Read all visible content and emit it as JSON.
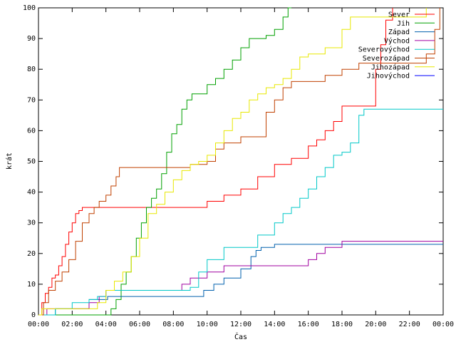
{
  "chart_data": {
    "type": "line",
    "title": "",
    "xlabel": "Čas",
    "ylabel": "krát",
    "xlim": [
      0,
      24
    ],
    "ylim": [
      0,
      100
    ],
    "x_unit": "hours",
    "x_ticks": [
      {
        "value": 0,
        "label": "00:00"
      },
      {
        "value": 2,
        "label": "02:00"
      },
      {
        "value": 4,
        "label": "04:00"
      },
      {
        "value": 6,
        "label": "06:00"
      },
      {
        "value": 8,
        "label": "08:00"
      },
      {
        "value": 10,
        "label": "10:00"
      },
      {
        "value": 12,
        "label": "12:00"
      },
      {
        "value": 14,
        "label": "14:00"
      },
      {
        "value": 16,
        "label": "16:00"
      },
      {
        "value": 18,
        "label": "18:00"
      },
      {
        "value": 20,
        "label": "20:00"
      },
      {
        "value": 22,
        "label": "22:00"
      },
      {
        "value": 24,
        "label": "00:00"
      }
    ],
    "y_ticks": [
      0,
      10,
      20,
      30,
      40,
      50,
      60,
      70,
      80,
      90,
      100
    ],
    "grid": false,
    "legend_position": "top-right",
    "series": [
      {
        "name": "Sever",
        "color": "#ff0000",
        "x": [
          0,
          0.2,
          0.4,
          0.6,
          0.8,
          1.0,
          1.2,
          1.4,
          1.6,
          1.8,
          2.0,
          2.2,
          2.4,
          2.6,
          2.8,
          3.0,
          9.5,
          10.0,
          11.0,
          12.0,
          13.0,
          14.0,
          15.0,
          16.0,
          16.5,
          17.0,
          17.5,
          18.0,
          18.5,
          19.0,
          20.0,
          20.3,
          20.6,
          21.0
        ],
        "y": [
          0,
          4,
          7,
          9,
          12,
          13,
          16,
          19,
          23,
          27,
          30,
          33,
          34,
          35,
          35,
          35,
          35,
          37,
          39,
          41,
          45,
          49,
          51,
          55,
          57,
          60,
          63,
          68,
          68,
          68,
          80,
          88,
          96,
          100
        ]
      },
      {
        "name": "Jih",
        "color": "#00a000",
        "x": [
          0,
          4.0,
          4.3,
          4.6,
          4.9,
          5.2,
          5.5,
          5.8,
          6.1,
          6.4,
          6.7,
          7.0,
          7.3,
          7.6,
          7.9,
          8.2,
          8.5,
          8.8,
          9.1,
          9.5,
          10.0,
          10.5,
          11.0,
          11.5,
          12.0,
          12.5,
          13.0,
          13.5,
          14.0,
          14.5,
          14.8,
          15.0
        ],
        "y": [
          0,
          0,
          2,
          5,
          10,
          14,
          19,
          25,
          30,
          35,
          38,
          41,
          46,
          53,
          59,
          62,
          67,
          70,
          72,
          72,
          75,
          77,
          80,
          83,
          87,
          90,
          90,
          91,
          93,
          97,
          100,
          100
        ]
      },
      {
        "name": "Západ",
        "color": "#0060ad",
        "x": [
          0,
          0.9,
          1.0,
          2.5,
          3.0,
          4.0,
          4.1,
          6.0,
          8.0,
          9.8,
          10.4,
          11.0,
          12.0,
          12.6,
          12.9,
          13.2,
          14.0,
          16.0,
          18.0,
          20.0,
          24.0
        ],
        "y": [
          0,
          0,
          2,
          2,
          5,
          5,
          6,
          6,
          6,
          8,
          10,
          12,
          15,
          19,
          21,
          22,
          23,
          23,
          23,
          23,
          23
        ]
      },
      {
        "name": "Východ",
        "color": "#a000a0",
        "x": [
          0,
          0.3,
          0.5,
          2.0,
          3.0,
          3.6,
          4.0,
          6.0,
          8.0,
          8.5,
          9.0,
          10.0,
          11.0,
          12.0,
          14.0,
          15.0,
          16.0,
          16.5,
          17.0,
          18.0,
          20.0,
          24.0
        ],
        "y": [
          0,
          0,
          2,
          2,
          4,
          6,
          8,
          8,
          8,
          10,
          12,
          14,
          16,
          16,
          16,
          16,
          18,
          20,
          22,
          24,
          24,
          24
        ]
      },
      {
        "name": "Severovýchod",
        "color": "#00c8c8",
        "x": [
          0,
          1.0,
          2.0,
          3.0,
          3.5,
          4.0,
          6.0,
          8.0,
          9.0,
          9.5,
          10.0,
          11.0,
          12.0,
          13.0,
          14.0,
          14.5,
          15.0,
          15.5,
          16.0,
          16.5,
          17.0,
          17.5,
          18.0,
          18.5,
          19.0,
          19.3,
          20.0,
          24.0
        ],
        "y": [
          0,
          2,
          4,
          5,
          6,
          8,
          8,
          8,
          9,
          14,
          18,
          22,
          22,
          26,
          30,
          33,
          35,
          38,
          41,
          45,
          48,
          52,
          53,
          56,
          65,
          67,
          67,
          67
        ]
      },
      {
        "name": "Severozápad",
        "color": "#c04000",
        "x": [
          0,
          0.3,
          0.6,
          1.0,
          1.4,
          1.8,
          2.2,
          2.6,
          3.0,
          3.3,
          3.6,
          4.0,
          4.3,
          4.6,
          4.8,
          5.0,
          6.0,
          8.0,
          9.0,
          10.0,
          10.5,
          11.0,
          12.0,
          13.0,
          13.5,
          14.0,
          14.5,
          15.0,
          16.0,
          17.0,
          18.0,
          19.0,
          20.0,
          21.0,
          22.0,
          23.0,
          23.5,
          23.8
        ],
        "y": [
          0,
          4,
          8,
          11,
          14,
          18,
          24,
          30,
          33,
          35,
          37,
          39,
          42,
          45,
          48,
          48,
          48,
          48,
          49,
          50,
          54,
          56,
          58,
          58,
          66,
          70,
          74,
          76,
          76,
          78,
          80,
          82,
          82,
          82,
          82,
          85,
          93,
          100
        ]
      },
      {
        "name": "Jihozápad",
        "color": "#e8e800",
        "x": [
          0,
          0.2,
          0.5,
          3.0,
          3.5,
          4.0,
          4.5,
          5.0,
          5.5,
          6.0,
          6.5,
          7.0,
          7.5,
          8.0,
          8.5,
          9.0,
          9.5,
          10.0,
          10.5,
          11.0,
          11.5,
          12.0,
          12.5,
          13.0,
          13.5,
          14.0,
          14.5,
          15.0,
          15.5,
          16.0,
          17.0,
          18.0,
          18.5,
          19.0,
          19.5,
          20.0,
          21.0,
          22.0,
          23.0
        ],
        "y": [
          0,
          2,
          2,
          2,
          4,
          8,
          11,
          14,
          19,
          25,
          33,
          36,
          40,
          44,
          47,
          49,
          50,
          52,
          56,
          60,
          64,
          66,
          70,
          72,
          74,
          75,
          77,
          80,
          84,
          85,
          87,
          93,
          97,
          97,
          97,
          97,
          97,
          97,
          100
        ]
      },
      {
        "name": "Jihovýchod",
        "color": "#0000ff",
        "x": [],
        "y": []
      }
    ]
  }
}
